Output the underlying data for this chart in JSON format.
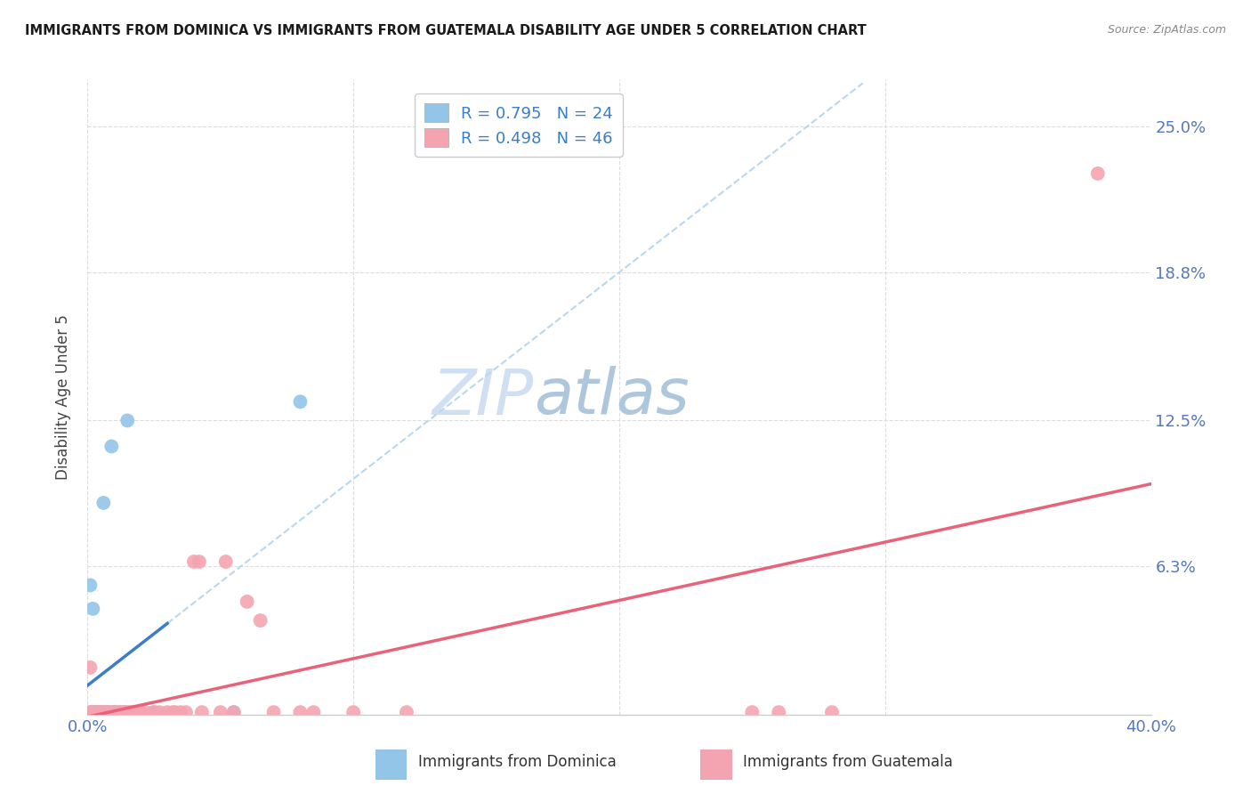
{
  "title": "IMMIGRANTS FROM DOMINICA VS IMMIGRANTS FROM GUATEMALA DISABILITY AGE UNDER 5 CORRELATION CHART",
  "source": "Source: ZipAtlas.com",
  "ylabel": "Disability Age Under 5",
  "xlim": [
    0.0,
    0.4
  ],
  "ylim": [
    0.0,
    0.27
  ],
  "dominica_R": 0.795,
  "dominica_N": 24,
  "guatemala_R": 0.498,
  "guatemala_N": 46,
  "dominica_color": "#92C5E8",
  "guatemala_color": "#F4A4B0",
  "dominica_line_color": "#3B7DC8",
  "dominica_dash_color": "#B8D8F0",
  "guatemala_line_color": "#E8627A",
  "watermark_color": "#DCE9F5",
  "dominica_x": [
    0.001,
    0.001,
    0.002,
    0.002,
    0.003,
    0.003,
    0.004,
    0.005,
    0.005,
    0.006,
    0.006,
    0.007,
    0.008,
    0.009,
    0.01,
    0.01,
    0.012,
    0.014,
    0.015,
    0.018,
    0.02,
    0.025,
    0.055,
    0.08
  ],
  "dominica_y": [
    0.001,
    0.055,
    0.045,
    0.001,
    0.001,
    0.001,
    0.001,
    0.001,
    0.001,
    0.001,
    0.09,
    0.001,
    0.001,
    0.114,
    0.001,
    0.001,
    0.001,
    0.001,
    0.125,
    0.001,
    0.001,
    0.001,
    0.001,
    0.133
  ],
  "guatemala_x": [
    0.001,
    0.001,
    0.002,
    0.003,
    0.004,
    0.005,
    0.006,
    0.007,
    0.008,
    0.009,
    0.01,
    0.011,
    0.012,
    0.013,
    0.014,
    0.015,
    0.016,
    0.017,
    0.018,
    0.019,
    0.02,
    0.022,
    0.025,
    0.027,
    0.03,
    0.032,
    0.033,
    0.035,
    0.037,
    0.04,
    0.042,
    0.043,
    0.05,
    0.052,
    0.055,
    0.06,
    0.065,
    0.07,
    0.08,
    0.085,
    0.1,
    0.12,
    0.25,
    0.26,
    0.28,
    0.38
  ],
  "guatemala_y": [
    0.001,
    0.02,
    0.001,
    0.001,
    0.001,
    0.001,
    0.001,
    0.001,
    0.001,
    0.001,
    0.001,
    0.001,
    0.001,
    0.001,
    0.001,
    0.001,
    0.001,
    0.001,
    0.001,
    0.001,
    0.001,
    0.001,
    0.001,
    0.001,
    0.001,
    0.001,
    0.001,
    0.001,
    0.001,
    0.065,
    0.065,
    0.001,
    0.001,
    0.065,
    0.001,
    0.048,
    0.04,
    0.001,
    0.001,
    0.001,
    0.001,
    0.001,
    0.001,
    0.001,
    0.001,
    0.23
  ],
  "ytick_vals": [
    0.063,
    0.125,
    0.188,
    0.25
  ],
  "ytick_labels": [
    "6.3%",
    "12.5%",
    "18.8%",
    "25.0%"
  ],
  "xtick_vals": [
    0.0,
    0.1,
    0.2,
    0.3,
    0.4
  ],
  "xtick_labels": [
    "0.0%",
    "",
    "",
    "",
    "40.0%"
  ]
}
